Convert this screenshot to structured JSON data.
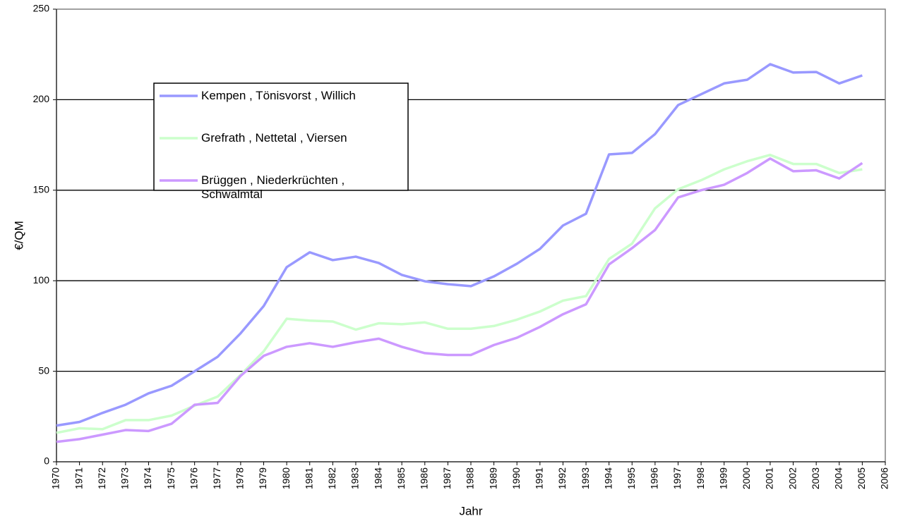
{
  "chart_data": {
    "type": "line",
    "y_label": "€/QM",
    "x_label": "Jahr",
    "x": [
      1970,
      1971,
      1972,
      1973,
      1974,
      1975,
      1976,
      1977,
      1978,
      1979,
      1980,
      1981,
      1982,
      1983,
      1984,
      1985,
      1986,
      1987,
      1988,
      1989,
      1990,
      1991,
      1992,
      1993,
      1994,
      1995,
      1996,
      1997,
      1998,
      1999,
      2000,
      2001,
      2002,
      2003,
      2004,
      2005
    ],
    "xlim": [
      1970,
      2006
    ],
    "xticks": [
      1970,
      1971,
      1972,
      1973,
      1974,
      1975,
      1976,
      1977,
      1978,
      1979,
      1980,
      1981,
      1982,
      1983,
      1984,
      1985,
      1986,
      1987,
      1988,
      1989,
      1990,
      1991,
      1992,
      1993,
      1994,
      1995,
      1996,
      1997,
      1998,
      1999,
      2000,
      2001,
      2002,
      2003,
      2004,
      2005,
      2006
    ],
    "ylim": [
      0,
      250
    ],
    "yticks": [
      0,
      50,
      100,
      150,
      200,
      250
    ],
    "grid": true,
    "series": [
      {
        "name": "Kempen , Tönisvorst , Willich",
        "color": "#9999ff",
        "values": [
          20,
          22,
          27,
          31.5,
          37.8,
          42,
          50,
          58,
          71,
          86,
          107.5,
          115.7,
          111.4,
          113.3,
          109.8,
          103.2,
          99.7,
          98.1,
          97,
          102.4,
          109.4,
          117.6,
          130.5,
          137,
          169.8,
          170.6,
          181,
          197,
          203,
          209,
          211,
          219.6,
          215,
          215.3,
          209,
          213.4
        ]
      },
      {
        "name": "Grefrath , Nettetal , Viersen",
        "color": "#ccffcc",
        "values": [
          16,
          18.5,
          18,
          23,
          23,
          25.5,
          31,
          36,
          48,
          61,
          79,
          78,
          77.5,
          73,
          76.5,
          76,
          77,
          73.5,
          73.5,
          75,
          78.5,
          83,
          89,
          91.5,
          112,
          120.5,
          140,
          150.5,
          155.5,
          161.5,
          166,
          169.5,
          164.5,
          164.5,
          159.5,
          161.5
        ]
      },
      {
        "name": "Brüggen , Niederkrüchten , Schwalmtal",
        "color": "#cc99ff",
        "values": [
          11,
          12.5,
          15,
          17.5,
          17,
          21,
          31.5,
          32.5,
          47.5,
          58.5,
          63.5,
          65.5,
          63.5,
          66,
          68,
          63.5,
          60,
          59,
          59,
          64.5,
          68.5,
          74.5,
          81.5,
          87,
          109,
          118,
          128,
          146,
          150,
          153,
          159.5,
          167.5,
          160.5,
          161,
          156.5,
          165
        ]
      }
    ]
  }
}
